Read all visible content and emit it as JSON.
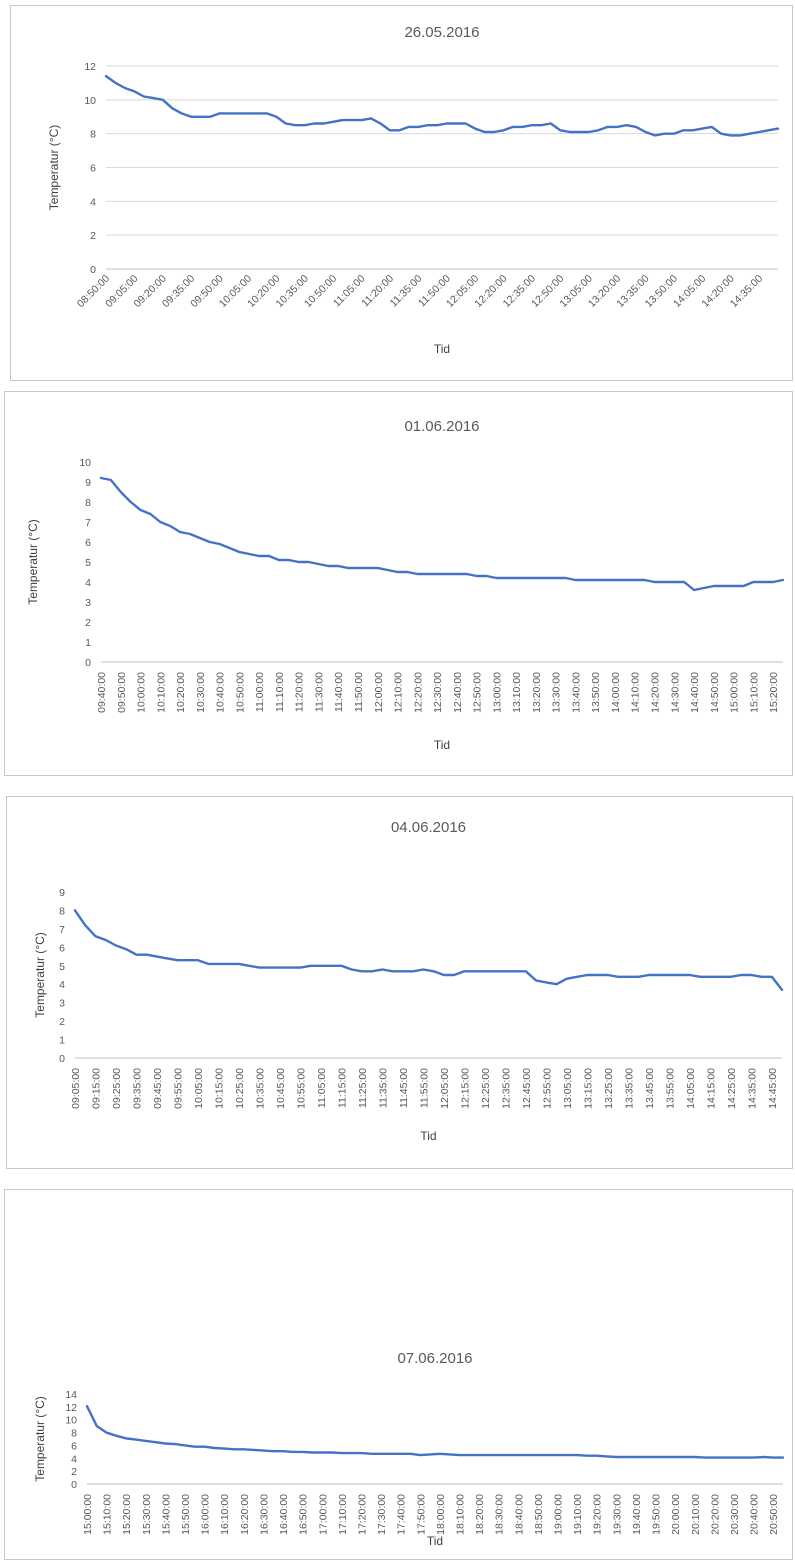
{
  "colors": {
    "series": "#4472c4",
    "grid": "#d9d9d9",
    "text": "#595959"
  },
  "chart_data": [
    {
      "type": "line",
      "title": "26.05.2016",
      "xlabel": "Tid",
      "ylabel": "Temperatur (°C)",
      "ylim": [
        0,
        12
      ],
      "yticks": [
        0,
        2,
        4,
        6,
        8,
        10,
        12
      ],
      "grid": true,
      "legend": "none",
      "xtick_labels": [
        "08:50:00",
        "09:05:00",
        "09:20:00",
        "09:35:00",
        "09:50:00",
        "10:05:00",
        "10:20:00",
        "10:35:00",
        "10:50:00",
        "11:05:00",
        "11:20:00",
        "11:35:00",
        "11:50:00",
        "12:05:00",
        "12:20:00",
        "12:35:00",
        "12:50:00",
        "13:05:00",
        "13:20:00",
        "13:35:00",
        "13:50:00",
        "14:05:00",
        "14:20:00",
        "14:35:00"
      ],
      "x": [
        "08:50:00",
        "08:55:00",
        "09:00:00",
        "09:05:00",
        "09:10:00",
        "09:15:00",
        "09:20:00",
        "09:25:00",
        "09:30:00",
        "09:35:00",
        "09:40:00",
        "09:45:00",
        "09:50:00",
        "09:55:00",
        "10:00:00",
        "10:05:00",
        "10:10:00",
        "10:15:00",
        "10:20:00",
        "10:25:00",
        "10:30:00",
        "10:35:00",
        "10:40:00",
        "10:45:00",
        "10:50:00",
        "10:55:00",
        "11:00:00",
        "11:05:00",
        "11:10:00",
        "11:15:00",
        "11:20:00",
        "11:25:00",
        "11:30:00",
        "11:35:00",
        "11:40:00",
        "11:45:00",
        "11:50:00",
        "11:55:00",
        "12:00:00",
        "12:05:00",
        "12:10:00",
        "12:15:00",
        "12:20:00",
        "12:25:00",
        "12:30:00",
        "12:35:00",
        "12:40:00",
        "12:45:00",
        "12:50:00",
        "12:55:00",
        "13:00:00",
        "13:05:00",
        "13:10:00",
        "13:15:00",
        "13:20:00",
        "13:25:00",
        "13:30:00",
        "13:35:00",
        "13:40:00",
        "13:45:00",
        "13:50:00",
        "13:55:00",
        "14:00:00",
        "14:05:00",
        "14:10:00",
        "14:15:00",
        "14:20:00",
        "14:25:00",
        "14:30:00",
        "14:35:00",
        "14:40:00",
        "14:45:00"
      ],
      "values": [
        11.4,
        11.0,
        10.7,
        10.5,
        10.2,
        10.1,
        10.0,
        9.5,
        9.2,
        9.0,
        9.0,
        9.0,
        9.2,
        9.2,
        9.2,
        9.2,
        9.2,
        9.2,
        9.0,
        8.6,
        8.5,
        8.5,
        8.6,
        8.6,
        8.7,
        8.8,
        8.8,
        8.8,
        8.9,
        8.6,
        8.2,
        8.2,
        8.4,
        8.4,
        8.5,
        8.5,
        8.6,
        8.6,
        8.6,
        8.3,
        8.1,
        8.1,
        8.2,
        8.4,
        8.4,
        8.5,
        8.5,
        8.6,
        8.2,
        8.1,
        8.1,
        8.1,
        8.2,
        8.4,
        8.4,
        8.5,
        8.4,
        8.1,
        7.9,
        8.0,
        8.0,
        8.2,
        8.2,
        8.3,
        8.4,
        8.0,
        7.9,
        7.9,
        8.0,
        8.1,
        8.2,
        8.3
      ]
    },
    {
      "type": "line",
      "title": "01.06.2016",
      "xlabel": "Tid",
      "ylabel": "Temperatur (°C)",
      "ylim": [
        0,
        10
      ],
      "yticks": [
        0,
        1,
        2,
        3,
        4,
        5,
        6,
        7,
        8,
        9,
        10
      ],
      "grid": false,
      "legend": "none",
      "xtick_labels": [
        "09:40:00",
        "09:50:00",
        "10:00:00",
        "10:10:00",
        "10:20:00",
        "10:30:00",
        "10:40:00",
        "10:50:00",
        "11:00:00",
        "11:10:00",
        "11:20:00",
        "11:30:00",
        "11:40:00",
        "11:50:00",
        "12:00:00",
        "12:10:00",
        "12:20:00",
        "12:30:00",
        "12:40:00",
        "12:50:00",
        "13:00:00",
        "13:10:00",
        "13:20:00",
        "13:30:00",
        "13:40:00",
        "13:50:00",
        "14:00:00",
        "14:10:00",
        "14:20:00",
        "14:30:00",
        "14:40:00",
        "14:50:00",
        "15:00:00",
        "15:10:00",
        "15:20:00"
      ],
      "x": [
        "09:40:00",
        "09:45:00",
        "09:50:00",
        "09:55:00",
        "10:00:00",
        "10:05:00",
        "10:10:00",
        "10:15:00",
        "10:20:00",
        "10:25:00",
        "10:30:00",
        "10:35:00",
        "10:40:00",
        "10:45:00",
        "10:50:00",
        "10:55:00",
        "11:00:00",
        "11:05:00",
        "11:10:00",
        "11:15:00",
        "11:20:00",
        "11:25:00",
        "11:30:00",
        "11:35:00",
        "11:40:00",
        "11:45:00",
        "11:50:00",
        "11:55:00",
        "12:00:00",
        "12:05:00",
        "12:10:00",
        "12:15:00",
        "12:20:00",
        "12:25:00",
        "12:30:00",
        "12:35:00",
        "12:40:00",
        "12:45:00",
        "12:50:00",
        "12:55:00",
        "13:00:00",
        "13:05:00",
        "13:10:00",
        "13:15:00",
        "13:20:00",
        "13:25:00",
        "13:30:00",
        "13:35:00",
        "13:40:00",
        "13:45:00",
        "13:50:00",
        "13:55:00",
        "14:00:00",
        "14:05:00",
        "14:10:00",
        "14:15:00",
        "14:20:00",
        "14:25:00",
        "14:30:00",
        "14:35:00",
        "14:40:00",
        "14:45:00",
        "14:50:00",
        "14:55:00",
        "15:00:00",
        "15:05:00",
        "15:10:00",
        "15:15:00",
        "15:20:00",
        "15:25:00"
      ],
      "values": [
        9.2,
        9.1,
        8.5,
        8.0,
        7.6,
        7.4,
        7.0,
        6.8,
        6.5,
        6.4,
        6.2,
        6.0,
        5.9,
        5.7,
        5.5,
        5.4,
        5.3,
        5.3,
        5.1,
        5.1,
        5.0,
        5.0,
        4.9,
        4.8,
        4.8,
        4.7,
        4.7,
        4.7,
        4.7,
        4.6,
        4.5,
        4.5,
        4.4,
        4.4,
        4.4,
        4.4,
        4.4,
        4.4,
        4.3,
        4.3,
        4.2,
        4.2,
        4.2,
        4.2,
        4.2,
        4.2,
        4.2,
        4.2,
        4.1,
        4.1,
        4.1,
        4.1,
        4.1,
        4.1,
        4.1,
        4.1,
        4.0,
        4.0,
        4.0,
        4.0,
        3.6,
        3.7,
        3.8,
        3.8,
        3.8,
        3.8,
        4.0,
        4.0,
        4.0,
        4.1
      ]
    },
    {
      "type": "line",
      "title": "04.06.2016",
      "xlabel": "Tid",
      "ylabel": "Temperatur (°C)",
      "ylim": [
        0,
        9
      ],
      "yticks": [
        0,
        1,
        2,
        3,
        4,
        5,
        6,
        7,
        8,
        9
      ],
      "grid": false,
      "legend": "none",
      "xtick_labels": [
        "09:05:00",
        "09:15:00",
        "09:25:00",
        "09:35:00",
        "09:45:00",
        "09:55:00",
        "10:05:00",
        "10:15:00",
        "10:25:00",
        "10:35:00",
        "10:45:00",
        "10:55:00",
        "11:05:00",
        "11:15:00",
        "11:25:00",
        "11:35:00",
        "11:45:00",
        "11:55:00",
        "12:05:00",
        "12:15:00",
        "12:25:00",
        "12:35:00",
        "12:45:00",
        "12:55:00",
        "13:05:00",
        "13:15:00",
        "13:25:00",
        "13:35:00",
        "13:45:00",
        "13:55:00",
        "14:05:00",
        "14:15:00",
        "14:25:00",
        "14:35:00",
        "14:45:00"
      ],
      "x": [
        "09:05:00",
        "09:10:00",
        "09:15:00",
        "09:20:00",
        "09:25:00",
        "09:30:00",
        "09:35:00",
        "09:40:00",
        "09:45:00",
        "09:50:00",
        "09:55:00",
        "10:00:00",
        "10:05:00",
        "10:10:00",
        "10:15:00",
        "10:20:00",
        "10:25:00",
        "10:30:00",
        "10:35:00",
        "10:40:00",
        "10:45:00",
        "10:50:00",
        "10:55:00",
        "11:00:00",
        "11:05:00",
        "11:10:00",
        "11:15:00",
        "11:20:00",
        "11:25:00",
        "11:30:00",
        "11:35:00",
        "11:40:00",
        "11:45:00",
        "11:50:00",
        "11:55:00",
        "12:00:00",
        "12:05:00",
        "12:10:00",
        "12:15:00",
        "12:20:00",
        "12:25:00",
        "12:30:00",
        "12:35:00",
        "12:40:00",
        "12:45:00",
        "12:50:00",
        "12:55:00",
        "13:00:00",
        "13:05:00",
        "13:10:00",
        "13:15:00",
        "13:20:00",
        "13:25:00",
        "13:30:00",
        "13:35:00",
        "13:40:00",
        "13:45:00",
        "13:50:00",
        "13:55:00",
        "14:00:00",
        "14:05:00",
        "14:10:00",
        "14:15:00",
        "14:20:00",
        "14:25:00",
        "14:30:00",
        "14:35:00",
        "14:40:00",
        "14:45:00",
        "14:50:00"
      ],
      "values": [
        8.0,
        7.2,
        6.6,
        6.4,
        6.1,
        5.9,
        5.6,
        5.6,
        5.5,
        5.4,
        5.3,
        5.3,
        5.3,
        5.1,
        5.1,
        5.1,
        5.1,
        5.0,
        4.9,
        4.9,
        4.9,
        4.9,
        4.9,
        5.0,
        5.0,
        5.0,
        5.0,
        4.8,
        4.7,
        4.7,
        4.8,
        4.7,
        4.7,
        4.7,
        4.8,
        4.7,
        4.5,
        4.5,
        4.7,
        4.7,
        4.7,
        4.7,
        4.7,
        4.7,
        4.7,
        4.2,
        4.1,
        4.0,
        4.3,
        4.4,
        4.5,
        4.5,
        4.5,
        4.4,
        4.4,
        4.4,
        4.5,
        4.5,
        4.5,
        4.5,
        4.5,
        4.4,
        4.4,
        4.4,
        4.4,
        4.5,
        4.5,
        4.4,
        4.4,
        3.7
      ]
    },
    {
      "type": "line",
      "title": "07.06.2016",
      "xlabel": "Tid",
      "ylabel": "Temperatur (°C)",
      "ylim": [
        0,
        14
      ],
      "yticks": [
        0,
        2,
        4,
        6,
        8,
        10,
        12,
        14
      ],
      "grid": false,
      "legend": "none",
      "xtick_labels": [
        "15:00:00",
        "15:10:00",
        "15:20:00",
        "15:30:00",
        "15:40:00",
        "15:50:00",
        "16:00:00",
        "16:10:00",
        "16:20:00",
        "16:30:00",
        "16:40:00",
        "16:50:00",
        "17:00:00",
        "17:10:00",
        "17:20:00",
        "17:30:00",
        "17:40:00",
        "17:50:00",
        "18:00:00",
        "18:10:00",
        "18:20:00",
        "18:30:00",
        "18:40:00",
        "18:50:00",
        "19:00:00",
        "19:10:00",
        "19:20:00",
        "19:30:00",
        "19:40:00",
        "19:50:00",
        "20:00:00",
        "20:10:00",
        "20:20:00",
        "20:30:00",
        "20:40:00",
        "20:50:00"
      ],
      "x": [
        "15:00:00",
        "15:05:00",
        "15:10:00",
        "15:15:00",
        "15:20:00",
        "15:25:00",
        "15:30:00",
        "15:35:00",
        "15:40:00",
        "15:45:00",
        "15:50:00",
        "15:55:00",
        "16:00:00",
        "16:05:00",
        "16:10:00",
        "16:15:00",
        "16:20:00",
        "16:25:00",
        "16:30:00",
        "16:35:00",
        "16:40:00",
        "16:45:00",
        "16:50:00",
        "16:55:00",
        "17:00:00",
        "17:05:00",
        "17:10:00",
        "17:15:00",
        "17:20:00",
        "17:25:00",
        "17:30:00",
        "17:35:00",
        "17:40:00",
        "17:45:00",
        "17:50:00",
        "17:55:00",
        "18:00:00",
        "18:05:00",
        "18:10:00",
        "18:15:00",
        "18:20:00",
        "18:25:00",
        "18:30:00",
        "18:35:00",
        "18:40:00",
        "18:45:00",
        "18:50:00",
        "18:55:00",
        "19:00:00",
        "19:05:00",
        "19:10:00",
        "19:15:00",
        "19:20:00",
        "19:25:00",
        "19:30:00",
        "19:35:00",
        "19:40:00",
        "19:45:00",
        "19:50:00",
        "19:55:00",
        "20:00:00",
        "20:05:00",
        "20:10:00",
        "20:15:00",
        "20:20:00",
        "20:25:00",
        "20:30:00",
        "20:35:00",
        "20:40:00",
        "20:45:00",
        "20:50:00",
        "20:55:00"
      ],
      "values": [
        12.1,
        9.0,
        8.0,
        7.5,
        7.1,
        6.9,
        6.7,
        6.5,
        6.3,
        6.2,
        6.0,
        5.8,
        5.8,
        5.6,
        5.5,
        5.4,
        5.4,
        5.3,
        5.2,
        5.1,
        5.1,
        5.0,
        5.0,
        4.9,
        4.9,
        4.9,
        4.8,
        4.8,
        4.8,
        4.7,
        4.7,
        4.7,
        4.7,
        4.7,
        4.5,
        4.6,
        4.7,
        4.6,
        4.5,
        4.5,
        4.5,
        4.5,
        4.5,
        4.5,
        4.5,
        4.5,
        4.5,
        4.5,
        4.5,
        4.5,
        4.5,
        4.4,
        4.4,
        4.3,
        4.2,
        4.2,
        4.2,
        4.2,
        4.2,
        4.2,
        4.2,
        4.2,
        4.2,
        4.1,
        4.1,
        4.1,
        4.1,
        4.1,
        4.1,
        4.2,
        4.1,
        4.1
      ]
    }
  ]
}
